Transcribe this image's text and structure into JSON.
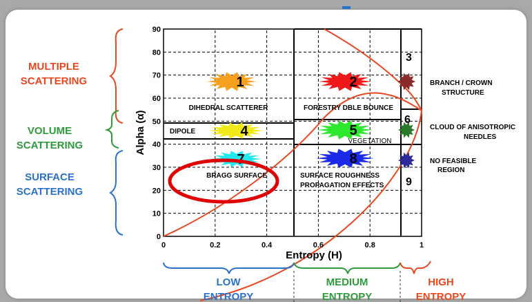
{
  "colors": {
    "frame": "#a9a9a9",
    "panel": "#ffffff",
    "curve": "#e8471f",
    "red_text": "#e8471f",
    "green_text": "#2e9a3c",
    "blue_text": "#2a72c8",
    "highlight_ellipse": "#e00000"
  },
  "axis": {
    "ylabel": "Alpha (α)",
    "xlabel": "Entropy (H)",
    "y_ticks": [
      "0",
      "10",
      "20",
      "30",
      "40",
      "50",
      "60",
      "70",
      "80",
      "90"
    ],
    "x_ticks": [
      "0",
      "0.2",
      "0.4",
      "0.6",
      "0.8",
      "1"
    ],
    "xlim": [
      0,
      1
    ],
    "ylim": [
      0,
      90
    ]
  },
  "left_labels": {
    "multiple_1": "MULTIPLE",
    "multiple_2": "SCATTERING",
    "volume_1": "VOLUME",
    "volume_2": "SCATTERING",
    "surface_1": "SURFACE",
    "surface_2": "SCATTERING"
  },
  "bottom_labels": {
    "low_1": "LOW",
    "low_2": "ENTROPY",
    "medium_1": "MEDIUM",
    "medium_2": "ENTROPY",
    "high_1": "HIGH",
    "high_2": "ENTROPY"
  },
  "zones": [
    {
      "num": "1",
      "color": "#f7a020",
      "label": "DIHEDRAL SCATTERER",
      "label2": ""
    },
    {
      "num": "2",
      "color": "#f01818",
      "label": "FORESTRY DBLE BOUNCE",
      "label2": ""
    },
    {
      "num": "3",
      "color": "#8b2a2a",
      "label": "",
      "label2": ""
    },
    {
      "num": "4",
      "color": "#f2ea18",
      "label": "DIPOLE",
      "label2": ""
    },
    {
      "num": "5",
      "color": "#2ee82e",
      "label": "VEGETATION",
      "label2": ""
    },
    {
      "num": "6",
      "color": "#2a7a2a",
      "label": "",
      "label2": ""
    },
    {
      "num": "7",
      "color": "#22e8f0",
      "label": "BRAGG SURFACE",
      "label2": ""
    },
    {
      "num": "8",
      "color": "#1a2ae8",
      "label": "SURFACE ROUGHNESS",
      "label2": "PROPAGATION EFFECTS"
    },
    {
      "num": "9",
      "color": "#2a2a9a",
      "label": "",
      "label2": ""
    }
  ],
  "right_labels": {
    "branch_1": "BRANCH / CROWN",
    "branch_2": "STRUCTURE",
    "cloud_1": "CLOUD OF ANISOTROPIC",
    "cloud_2": "NEEDLES",
    "nofeasible_1": "NO FEASIBLE",
    "nofeasible_2": "REGION"
  }
}
